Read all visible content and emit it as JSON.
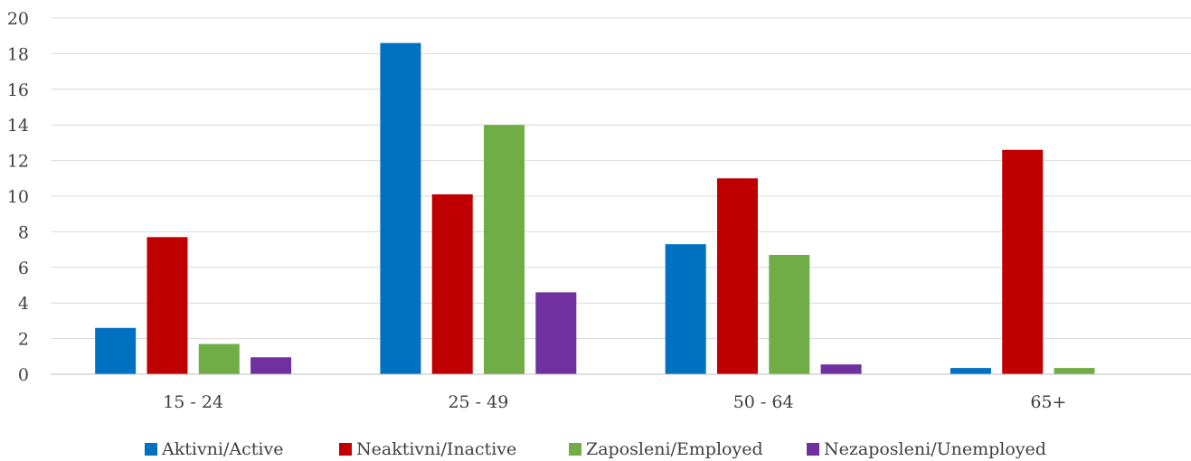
{
  "chart_data": {
    "type": "bar",
    "categories": [
      "15 - 24",
      "25 - 49",
      "50 - 64",
      "65+"
    ],
    "series": [
      {
        "name": "Aktivni/Active",
        "color": "#0070C0",
        "values": [
          2.6,
          18.6,
          7.3,
          0.35
        ]
      },
      {
        "name": "Neaktivni/Inactive",
        "color": "#C00000",
        "values": [
          7.7,
          10.1,
          11.0,
          12.6
        ]
      },
      {
        "name": "Zaposleni/Employed",
        "color": "#70AD47",
        "values": [
          1.7,
          14.0,
          6.7,
          0.35
        ]
      },
      {
        "name": "Nezaposleni/Unemployed",
        "color": "#7030A0",
        "values": [
          0.95,
          4.6,
          0.55,
          0
        ]
      }
    ],
    "yticks": [
      "0",
      "2",
      "4",
      "6",
      "8",
      "10",
      "12",
      "14",
      "16",
      "18",
      "20"
    ],
    "ylim": [
      0,
      20
    ],
    "grid": true,
    "legend": "bottom"
  }
}
